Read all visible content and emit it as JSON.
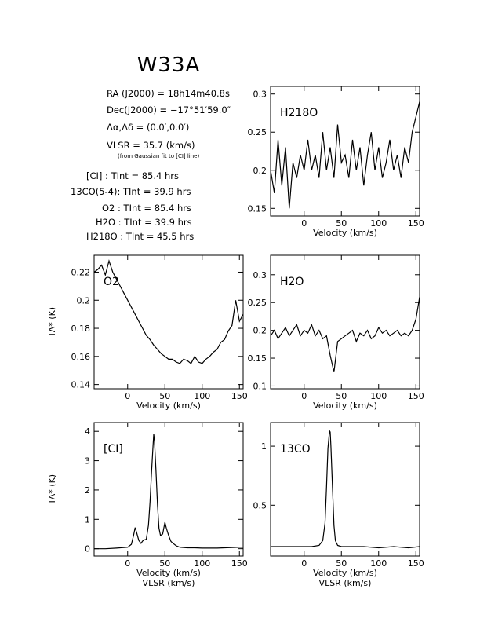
{
  "title": "W33A",
  "source_info": {
    "ra": "RA (J2000) = 18h14m40.8s",
    "dec": "Dec(J2000) = −17°51′59.0″",
    "offset": "Δα,Δδ = (0.0′,0.0′)",
    "vlsr": "VLSR = 35.7 (km/s)",
    "vlsr_note": "(from Gaussian fit to [CI] line)",
    "integration_times": [
      {
        "line": "[CI]",
        "text": "[CI] : TInt = 85.4 hrs"
      },
      {
        "line": "13CO(5-4)",
        "text": "13CO(5-4): TInt = 39.9 hrs"
      },
      {
        "line": "O2",
        "text": "O2 : TInt = 85.4 hrs"
      },
      {
        "line": "H2O",
        "text": "H2O : TInt = 39.9 hrs"
      },
      {
        "line": "H2 18O",
        "text": "H218O : TInt = 45.5 hrs"
      }
    ]
  },
  "chart_data": [
    {
      "id": "h218o",
      "type": "line",
      "label": "H218O",
      "xlabel": "Velocity (km/s)",
      "ylabel": "",
      "xlim": [
        -45,
        155
      ],
      "ylim": [
        0.14,
        0.31
      ],
      "xticks": [
        0,
        50,
        100,
        150
      ],
      "yticks": [
        0.15,
        0.2,
        0.25,
        0.3
      ],
      "ytick_labels": [
        "0.15",
        "0.2",
        "0.25",
        "0.3"
      ],
      "x": [
        -45,
        -40,
        -35,
        -30,
        -25,
        -20,
        -15,
        -10,
        -5,
        0,
        5,
        10,
        15,
        20,
        25,
        30,
        35,
        40,
        45,
        50,
        55,
        60,
        65,
        70,
        75,
        80,
        85,
        90,
        95,
        100,
        105,
        110,
        115,
        120,
        125,
        130,
        135,
        140,
        145,
        150,
        155
      ],
      "y": [
        0.2,
        0.17,
        0.24,
        0.18,
        0.23,
        0.15,
        0.21,
        0.19,
        0.22,
        0.2,
        0.24,
        0.2,
        0.22,
        0.19,
        0.25,
        0.2,
        0.23,
        0.19,
        0.26,
        0.21,
        0.22,
        0.19,
        0.24,
        0.2,
        0.23,
        0.18,
        0.22,
        0.25,
        0.2,
        0.23,
        0.19,
        0.21,
        0.24,
        0.2,
        0.22,
        0.19,
        0.23,
        0.21,
        0.25,
        0.27,
        0.29
      ]
    },
    {
      "id": "o2",
      "type": "line",
      "label": "O2",
      "xlabel": "Velocity (km/s)",
      "ylabel": "TA* (K)",
      "xlim": [
        -45,
        155
      ],
      "ylim": [
        0.137,
        0.232
      ],
      "xticks": [
        0,
        50,
        100,
        150
      ],
      "yticks": [
        0.14,
        0.16,
        0.18,
        0.2,
        0.22
      ],
      "ytick_labels": [
        "0.14",
        "0.16",
        "0.18",
        "0.2",
        "0.22"
      ],
      "x": [
        -45,
        -40,
        -35,
        -30,
        -25,
        -20,
        -15,
        -10,
        -5,
        0,
        5,
        10,
        15,
        20,
        25,
        30,
        35,
        40,
        45,
        50,
        55,
        60,
        65,
        70,
        75,
        80,
        85,
        90,
        95,
        100,
        105,
        110,
        115,
        120,
        125,
        130,
        135,
        140,
        145,
        150,
        155
      ],
      "y": [
        0.22,
        0.222,
        0.225,
        0.218,
        0.228,
        0.22,
        0.215,
        0.21,
        0.205,
        0.2,
        0.195,
        0.19,
        0.185,
        0.18,
        0.175,
        0.172,
        0.168,
        0.165,
        0.162,
        0.16,
        0.158,
        0.158,
        0.156,
        0.155,
        0.158,
        0.157,
        0.155,
        0.16,
        0.156,
        0.155,
        0.158,
        0.16,
        0.163,
        0.165,
        0.17,
        0.172,
        0.178,
        0.182,
        0.2,
        0.185,
        0.19
      ]
    },
    {
      "id": "h2o",
      "type": "line",
      "label": "H2O",
      "xlabel": "Velocity (km/s)",
      "ylabel": "",
      "xlim": [
        -45,
        155
      ],
      "ylim": [
        0.095,
        0.335
      ],
      "xticks": [
        0,
        50,
        100,
        150
      ],
      "yticks": [
        0.1,
        0.15,
        0.2,
        0.25,
        0.3
      ],
      "ytick_labels": [
        "0.1",
        "0.15",
        "0.2",
        "0.25",
        "0.3"
      ],
      "x": [
        -45,
        -40,
        -35,
        -30,
        -25,
        -20,
        -15,
        -10,
        -5,
        0,
        5,
        10,
        15,
        20,
        25,
        30,
        35,
        40,
        45,
        50,
        55,
        60,
        65,
        70,
        75,
        80,
        85,
        90,
        95,
        100,
        105,
        110,
        115,
        120,
        125,
        130,
        135,
        140,
        145,
        150,
        155
      ],
      "y": [
        0.19,
        0.2,
        0.185,
        0.195,
        0.205,
        0.19,
        0.2,
        0.21,
        0.19,
        0.2,
        0.195,
        0.21,
        0.19,
        0.2,
        0.185,
        0.19,
        0.155,
        0.125,
        0.18,
        0.185,
        0.19,
        0.195,
        0.2,
        0.18,
        0.195,
        0.19,
        0.2,
        0.185,
        0.19,
        0.205,
        0.195,
        0.2,
        0.19,
        0.195,
        0.2,
        0.19,
        0.195,
        0.19,
        0.2,
        0.22,
        0.26
      ]
    },
    {
      "id": "ci",
      "type": "line",
      "label": "[CI]",
      "xlabel": "Velocity (km/s)",
      "xlabel2": "VLSR (km/s)",
      "ylabel": "TA* (K)",
      "xlim": [
        -45,
        155
      ],
      "ylim": [
        -0.25,
        4.3
      ],
      "xticks": [
        0,
        50,
        100,
        150
      ],
      "yticks": [
        0,
        1,
        2,
        3,
        4
      ],
      "ytick_labels": [
        "0",
        "1",
        "2",
        "3",
        "4"
      ],
      "x": [
        -45,
        -30,
        -15,
        0,
        5,
        8,
        10,
        12,
        15,
        18,
        20,
        22,
        25,
        28,
        30,
        32,
        34,
        35,
        36,
        38,
        40,
        42,
        44,
        47,
        50,
        52,
        55,
        58,
        60,
        65,
        70,
        80,
        90,
        100,
        110,
        120,
        130,
        140,
        150,
        155
      ],
      "y": [
        0.0,
        0.0,
        0.02,
        0.05,
        0.15,
        0.45,
        0.72,
        0.55,
        0.28,
        0.18,
        0.26,
        0.3,
        0.32,
        0.8,
        1.6,
        2.6,
        3.5,
        3.9,
        3.7,
        2.7,
        1.5,
        0.7,
        0.45,
        0.5,
        0.9,
        0.7,
        0.45,
        0.25,
        0.2,
        0.1,
        0.05,
        0.03,
        0.03,
        0.02,
        0.02,
        0.02,
        0.03,
        0.04,
        0.05,
        0.05
      ]
    },
    {
      "id": "13co",
      "type": "line",
      "label": "13CO",
      "xlabel": "Velocity (km/s)",
      "xlabel2": "VLSR (km/s)",
      "ylabel": "",
      "xlim": [
        -45,
        155
      ],
      "ylim": [
        0.07,
        1.2
      ],
      "xticks": [
        0,
        50,
        100,
        150
      ],
      "yticks": [
        0.5,
        1
      ],
      "ytick_labels": [
        "0.5",
        "1"
      ],
      "x": [
        -45,
        -30,
        -15,
        0,
        10,
        20,
        25,
        28,
        30,
        32,
        34,
        35,
        36,
        38,
        40,
        42,
        45,
        50,
        60,
        80,
        100,
        120,
        140,
        155
      ],
      "y": [
        0.15,
        0.15,
        0.15,
        0.15,
        0.15,
        0.16,
        0.2,
        0.35,
        0.65,
        0.98,
        1.13,
        1.12,
        1.0,
        0.65,
        0.33,
        0.2,
        0.16,
        0.15,
        0.15,
        0.15,
        0.14,
        0.15,
        0.14,
        0.15
      ]
    }
  ]
}
